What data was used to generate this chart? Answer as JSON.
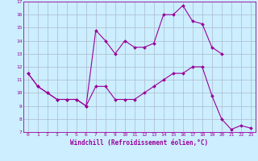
{
  "xlabel": "Windchill (Refroidissement éolien,°C)",
  "background_color": "#cceeff",
  "line_color": "#990099",
  "grid_color": "#aabbcc",
  "xlim": [
    -0.5,
    23.5
  ],
  "ylim": [
    7,
    17
  ],
  "xticks": [
    0,
    1,
    2,
    3,
    4,
    5,
    6,
    7,
    8,
    9,
    10,
    11,
    12,
    13,
    14,
    15,
    16,
    17,
    18,
    19,
    20,
    21,
    22,
    23
  ],
  "yticks": [
    7,
    8,
    9,
    10,
    11,
    12,
    13,
    14,
    15,
    16,
    17
  ],
  "y_lower": [
    11.5,
    10.5,
    10.0,
    9.5,
    9.5,
    9.5,
    9.0,
    10.5,
    10.5,
    9.5,
    9.5,
    9.5,
    10.0,
    10.5,
    11.0,
    11.5,
    11.5,
    12.0,
    12.0,
    9.8,
    8.0,
    7.2,
    7.5,
    7.3
  ],
  "y_upper": [
    11.5,
    10.5,
    10.0,
    9.5,
    9.5,
    9.5,
    9.0,
    14.8,
    14.0,
    13.0,
    14.0,
    13.5,
    13.5,
    13.8,
    16.0,
    16.0,
    16.7,
    15.5,
    15.3,
    13.5,
    13.0,
    null,
    null,
    null
  ],
  "marker": "D",
  "markersize": 2.0,
  "linewidth": 0.8,
  "tick_fontsize": 4.5,
  "xlabel_fontsize": 5.5
}
